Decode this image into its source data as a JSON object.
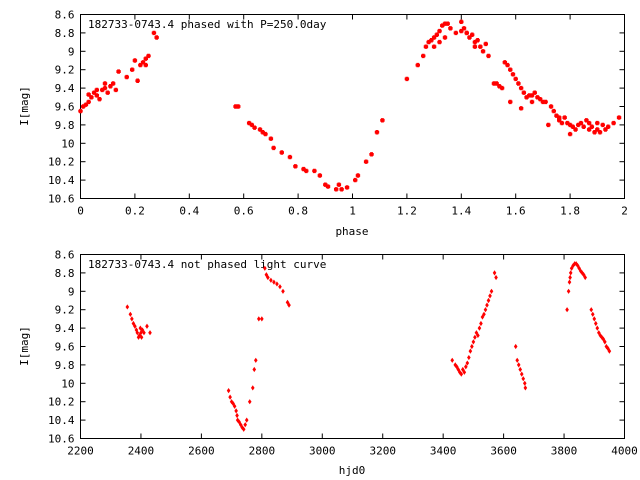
{
  "chart_data": [
    {
      "type": "scatter",
      "title": "182733-0743.4 phased with P=250.0day",
      "xlabel": "phase",
      "ylabel": "I[mag]",
      "xlim": [
        0,
        2
      ],
      "ylim": [
        10.6,
        8.6
      ],
      "y_inverted": true,
      "x_ticks": [
        "0",
        "0.2",
        "0.4",
        "0.6",
        "0.8",
        "1",
        "1.2",
        "1.4",
        "1.6",
        "1.8",
        "2"
      ],
      "y_ticks": [
        "8.6",
        "8.8",
        "9",
        "9.2",
        "9.4",
        "9.6",
        "9.8",
        "10",
        "10.2",
        "10.4",
        "10.6"
      ],
      "grid": false,
      "marker_color": "#ff0000",
      "series": [
        {
          "x": [
            0.0,
            0.01,
            0.02,
            0.03,
            0.04,
            0.05,
            0.06,
            0.07,
            0.08,
            0.09,
            0.1,
            0.11,
            0.12,
            0.14,
            0.17,
            0.19,
            0.2,
            0.22,
            0.23,
            0.24,
            0.25,
            0.27,
            0.28,
            0.57,
            0.58,
            0.62,
            0.63,
            0.64,
            0.66,
            0.67,
            0.68,
            0.7,
            0.71,
            0.74,
            0.77,
            0.79,
            0.82,
            0.83,
            0.86,
            0.88,
            0.9,
            0.91,
            0.94,
            0.95,
            0.96,
            0.98,
            1.01,
            1.02,
            1.05,
            1.07,
            1.09,
            1.11,
            1.2,
            1.24,
            1.26,
            1.27,
            1.28,
            1.29,
            1.3,
            1.31,
            1.32,
            1.33,
            1.34,
            1.35,
            1.36,
            1.38,
            1.4,
            1.41,
            1.42,
            1.43,
            1.44,
            1.45,
            1.46,
            1.47,
            1.48,
            1.49,
            1.5,
            1.52,
            1.53,
            1.54,
            1.55,
            1.56,
            1.57,
            1.58,
            1.59,
            1.6,
            1.61,
            1.62,
            1.63,
            1.64,
            1.65,
            1.66,
            1.67,
            1.68,
            1.69,
            1.7,
            1.72,
            1.73,
            1.74,
            1.75,
            1.76,
            1.77,
            1.78,
            1.79,
            1.8,
            1.81,
            1.82,
            1.83,
            1.84,
            1.85,
            1.86,
            1.87,
            1.88,
            1.89,
            1.9,
            1.91,
            1.92,
            1.93,
            1.94,
            1.96,
            1.98,
            1.3,
            1.32,
            1.34,
            1.4,
            1.42,
            1.45,
            1.58,
            1.62,
            1.66,
            1.71,
            1.76,
            1.8,
            1.87,
            1.9,
            0.03,
            0.06,
            0.09,
            0.13,
            0.21,
            0.24
          ],
          "y": [
            9.65,
            9.6,
            9.58,
            9.55,
            9.5,
            9.45,
            9.48,
            9.52,
            9.42,
            9.4,
            9.45,
            9.38,
            9.35,
            9.22,
            9.28,
            9.2,
            9.1,
            9.15,
            9.12,
            9.15,
            9.05,
            8.8,
            8.85,
            9.6,
            9.6,
            9.78,
            9.8,
            9.83,
            9.85,
            9.88,
            9.9,
            9.95,
            10.05,
            10.1,
            10.15,
            10.25,
            10.28,
            10.3,
            10.3,
            10.35,
            10.45,
            10.47,
            10.5,
            10.45,
            10.5,
            10.48,
            10.4,
            10.35,
            10.2,
            10.12,
            9.88,
            9.75,
            9.3,
            9.15,
            9.05,
            8.95,
            8.9,
            8.88,
            8.85,
            8.82,
            8.78,
            8.72,
            8.7,
            8.7,
            8.75,
            8.8,
            8.68,
            8.75,
            8.8,
            8.85,
            8.82,
            8.9,
            8.88,
            8.95,
            9.0,
            8.92,
            9.05,
            9.35,
            9.35,
            9.38,
            9.4,
            9.12,
            9.15,
            9.2,
            9.25,
            9.3,
            9.35,
            9.4,
            9.45,
            9.5,
            9.48,
            9.55,
            9.45,
            9.5,
            9.52,
            9.55,
            9.8,
            9.6,
            9.65,
            9.7,
            9.75,
            9.78,
            9.72,
            9.78,
            9.8,
            9.82,
            9.85,
            9.8,
            9.78,
            9.82,
            9.75,
            9.78,
            9.82,
            9.88,
            9.85,
            9.88,
            9.8,
            9.85,
            9.82,
            9.78,
            9.72,
            8.95,
            8.9,
            8.85,
            8.78,
            8.8,
            8.95,
            9.55,
            9.62,
            9.48,
            9.55,
            9.72,
            9.9,
            9.85,
            9.78,
            9.47,
            9.42,
            9.35,
            9.42,
            9.32,
            9.08
          ]
        }
      ]
    },
    {
      "type": "scatter",
      "title": "182733-0743.4 not phased light curve",
      "xlabel": "hjd0",
      "ylabel": "I[mag]",
      "xlim": [
        2200,
        4000
      ],
      "ylim": [
        10.6,
        8.6
      ],
      "y_inverted": true,
      "x_ticks": [
        "2200",
        "2400",
        "2600",
        "2800",
        "3000",
        "3200",
        "3400",
        "3600",
        "3800",
        "4000"
      ],
      "y_ticks": [
        "8.6",
        "8.8",
        "9",
        "9.2",
        "9.4",
        "9.6",
        "9.8",
        "10",
        "10.2",
        "10.4",
        "10.6"
      ],
      "grid": false,
      "marker_color": "#ff0000",
      "series": [
        {
          "x": [
            2355,
            2365,
            2370,
            2375,
            2380,
            2385,
            2388,
            2392,
            2395,
            2398,
            2400,
            2402,
            2405,
            2410,
            2420,
            2430,
            2690,
            2695,
            2700,
            2705,
            2710,
            2715,
            2718,
            2720,
            2725,
            2730,
            2735,
            2740,
            2745,
            2750,
            2760,
            2770,
            2775,
            2780,
            2790,
            2800,
            2810,
            2815,
            2820,
            2830,
            2840,
            2850,
            2860,
            2870,
            2885,
            2890,
            3430,
            3440,
            3445,
            3450,
            3455,
            3460,
            3465,
            3470,
            3475,
            3480,
            3485,
            3490,
            3495,
            3500,
            3505,
            3510,
            3515,
            3520,
            3525,
            3530,
            3535,
            3540,
            3545,
            3550,
            3555,
            3560,
            3570,
            3575,
            3640,
            3645,
            3650,
            3655,
            3660,
            3665,
            3670,
            3672,
            3810,
            3815,
            3818,
            3820,
            3822,
            3825,
            3830,
            3835,
            3840,
            3845,
            3850,
            3855,
            3860,
            3865,
            3870,
            3890,
            3895,
            3900,
            3905,
            3910,
            3915,
            3920,
            3925,
            3930,
            3935,
            3940,
            3945,
            3950
          ],
          "y": [
            9.17,
            9.25,
            9.3,
            9.35,
            9.38,
            9.42,
            9.45,
            9.5,
            9.48,
            9.4,
            9.45,
            9.5,
            9.42,
            9.45,
            9.38,
            9.45,
            10.08,
            10.15,
            10.2,
            10.22,
            10.25,
            10.3,
            10.35,
            10.4,
            10.42,
            10.45,
            10.48,
            10.5,
            10.45,
            10.4,
            10.2,
            10.05,
            9.85,
            9.75,
            9.3,
            9.3,
            8.75,
            8.82,
            8.85,
            8.88,
            8.9,
            8.92,
            8.95,
            9.0,
            9.12,
            9.15,
            9.75,
            9.8,
            9.82,
            9.85,
            9.88,
            9.9,
            9.85,
            9.88,
            9.82,
            9.78,
            9.72,
            9.65,
            9.6,
            9.55,
            9.5,
            9.45,
            9.48,
            9.4,
            9.35,
            9.28,
            9.25,
            9.2,
            9.15,
            9.1,
            9.05,
            9.0,
            8.8,
            8.85,
            9.6,
            9.75,
            9.8,
            9.85,
            9.9,
            9.95,
            10.0,
            10.05,
            9.2,
            9.0,
            8.9,
            8.85,
            8.8,
            8.75,
            8.72,
            8.7,
            8.7,
            8.72,
            8.75,
            8.78,
            8.8,
            8.82,
            8.85,
            9.2,
            9.25,
            9.3,
            9.35,
            9.4,
            9.45,
            9.48,
            9.5,
            9.52,
            9.55,
            9.6,
            9.62,
            9.65
          ]
        }
      ]
    }
  ]
}
